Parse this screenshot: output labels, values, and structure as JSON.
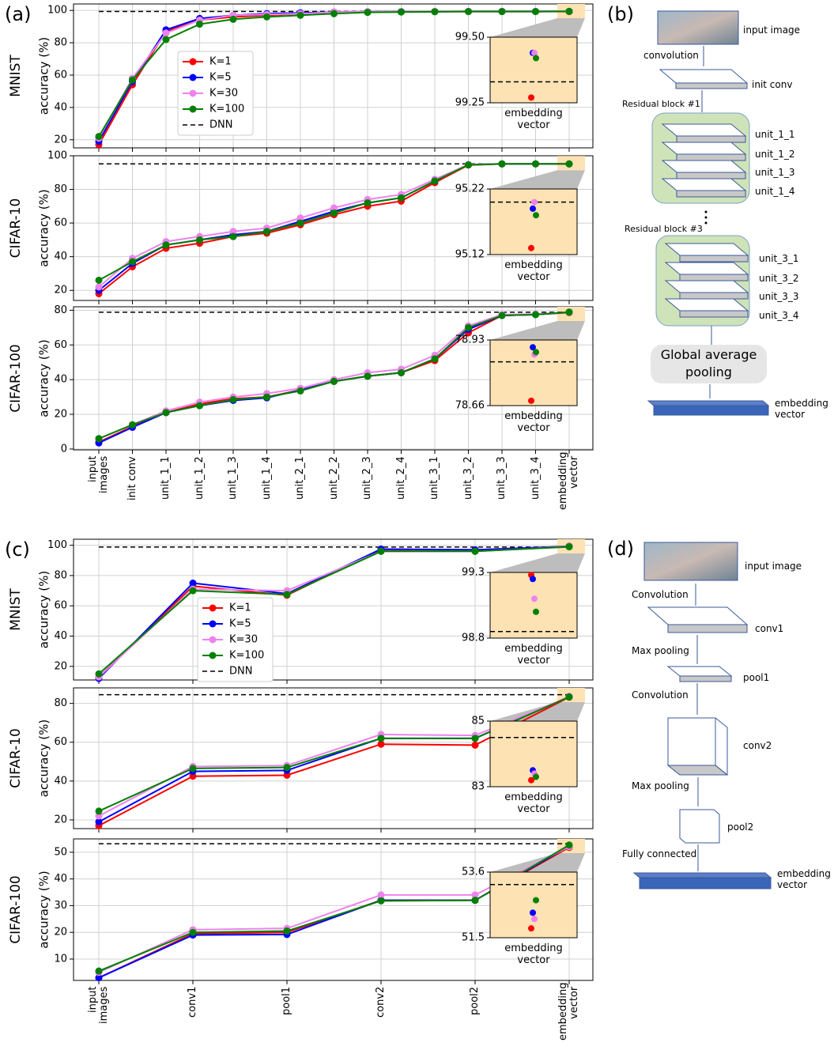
{
  "chart_data": [
    {
      "type": "line",
      "panel": "(a)",
      "title": "MNIST",
      "ylabel": "accuracy (%)",
      "ylim": [
        15,
        104
      ],
      "yticks": [
        20,
        40,
        60,
        80,
        100
      ],
      "grid": true,
      "legend": "upper left",
      "series": [
        {
          "name": "K=1",
          "color": "#ff0000",
          "values": [
            17,
            54,
            87,
            94,
            96,
            97,
            98,
            99,
            99,
            99.2,
            99.3,
            99.3,
            99.3,
            99.3,
            99.27
          ]
        },
        {
          "name": "K=5",
          "color": "#0000ff",
          "values": [
            19,
            56,
            88,
            95,
            97,
            98,
            98.5,
            99,
            99.2,
            99.3,
            99.3,
            99.4,
            99.4,
            99.4,
            99.44
          ]
        },
        {
          "name": "K=30",
          "color": "#ee82ee",
          "values": [
            21,
            58,
            86,
            94,
            97,
            97.5,
            98,
            99,
            99.2,
            99.3,
            99.4,
            99.4,
            99.4,
            99.4,
            99.44
          ]
        },
        {
          "name": "K=100",
          "color": "#008000",
          "values": [
            22,
            57,
            82,
            91.5,
            94.5,
            96,
            97,
            98,
            98.8,
            99,
            99.2,
            99.3,
            99.3,
            99.3,
            99.42
          ]
        }
      ],
      "dnn": {
        "name": "DNN",
        "value": 99.33
      },
      "inset": {
        "ylim": [
          99.25,
          99.5
        ],
        "yticks": [
          99.25,
          {
            "value": 99.5,
            "label": "99.50"
          }
        ],
        "xlabel": "embedding vector"
      }
    },
    {
      "type": "line",
      "title": "CIFAR-10",
      "ylabel": "accuracy (%)",
      "ylim": [
        14,
        100
      ],
      "yticks": [
        20,
        40,
        60,
        80,
        100
      ],
      "grid": true,
      "series": [
        {
          "color": "#ff0000",
          "values": [
            18,
            34,
            45,
            48,
            52,
            54,
            59,
            65,
            70,
            73,
            84,
            94.5,
            95.1,
            95.15,
            95.13
          ]
        },
        {
          "color": "#0000ff",
          "values": [
            20,
            36,
            47,
            50,
            53,
            55,
            61,
            67,
            72,
            75,
            85,
            94.7,
            95.2,
            95.2,
            95.19
          ]
        },
        {
          "color": "#ee82ee",
          "values": [
            22,
            39,
            49,
            52,
            55,
            57,
            63,
            69,
            74,
            77,
            86,
            94.8,
            95.2,
            95.2,
            95.2
          ]
        },
        {
          "color": "#008000",
          "values": [
            26,
            37,
            47,
            50,
            52,
            55,
            60,
            66,
            72,
            75,
            85,
            94.6,
            95.2,
            95.2,
            95.18
          ]
        }
      ],
      "dnn": {
        "value": 95.2
      },
      "inset": {
        "ylim": [
          95.12,
          95.22
        ],
        "yticks": [
          95.12,
          95.22
        ],
        "xlabel": "embedding vector"
      }
    },
    {
      "type": "line",
      "title": "CIFAR-100",
      "ylabel": "accuracy (%)",
      "ylim": [
        -0.5,
        82
      ],
      "yticks": [
        0,
        20,
        40,
        60,
        80
      ],
      "grid": true,
      "categories": [
        "input images",
        "init conv",
        "unit_1_1",
        "unit_1_2",
        "unit_1_3",
        "unit_1_4",
        "unit_2_1",
        "unit_2_2",
        "unit_2_3",
        "unit_2_4",
        "unit_3_1",
        "unit_3_2",
        "unit_3_3",
        "unit_3_4",
        "embedding vector"
      ],
      "series": [
        {
          "color": "#ff0000",
          "values": [
            4,
            13,
            21,
            26,
            29,
            30,
            34,
            39,
            42,
            44,
            51,
            67,
            77,
            77.5,
            78.68
          ]
        },
        {
          "color": "#0000ff",
          "values": [
            3.5,
            12.5,
            21,
            25,
            28,
            29.5,
            34,
            39,
            42,
            44,
            52,
            69,
            77,
            77.5,
            78.9
          ]
        },
        {
          "color": "#ee82ee",
          "values": [
            6,
            14,
            22,
            27,
            30,
            32,
            35,
            40,
            44,
            46,
            54,
            71,
            77.5,
            77.8,
            78.87
          ]
        },
        {
          "color": "#008000",
          "values": [
            6,
            14,
            21,
            25,
            28.5,
            30,
            33.5,
            39,
            42,
            44,
            52,
            70,
            77,
            77.5,
            78.88
          ]
        }
      ],
      "dnn": {
        "value": 78.84
      },
      "inset": {
        "ylim": [
          78.66,
          78.93
        ],
        "yticks": [
          78.66,
          78.93
        ],
        "xlabel": "embedding vector"
      }
    },
    {
      "type": "line",
      "panel": "(c)",
      "title": "MNIST",
      "ylabel": "accuracy (%)",
      "ylim": [
        11,
        104
      ],
      "yticks": [
        20,
        40,
        60,
        80,
        100
      ],
      "grid": true,
      "legend": "center left",
      "series": [
        {
          "name": "K=1",
          "color": "#ff0000",
          "values": [
            13,
            73,
            67,
            97,
            97,
            99.28
          ]
        },
        {
          "name": "K=5",
          "color": "#0000ff",
          "values": [
            12,
            75,
            68,
            97.5,
            97,
            99.25
          ]
        },
        {
          "name": "K=30",
          "color": "#ee82ee",
          "values": [
            13,
            71,
            70,
            96,
            96,
            99.1
          ]
        },
        {
          "name": "K=100",
          "color": "#008000",
          "values": [
            15,
            70,
            67.5,
            96,
            96,
            99.0
          ]
        }
      ],
      "dnn": {
        "name": "DNN",
        "value": 98.85
      },
      "inset": {
        "ylim": [
          98.8,
          99.3
        ],
        "yticks": [
          98.8,
          99.3
        ],
        "xlabel": "embedding vector"
      }
    },
    {
      "type": "line",
      "title": "CIFAR-10",
      "ylabel": "accuracy (%)",
      "ylim": [
        15.5,
        88
      ],
      "yticks": [
        20,
        40,
        60,
        80
      ],
      "grid": true,
      "series": [
        {
          "color": "#ff0000",
          "values": [
            17,
            42.5,
            43,
            59,
            58.5,
            83.2
          ]
        },
        {
          "color": "#0000ff",
          "values": [
            19,
            45,
            45.5,
            62,
            62,
            83.5
          ]
        },
        {
          "color": "#ee82ee",
          "values": [
            22,
            47.5,
            48,
            64,
            63.5,
            83.4
          ]
        },
        {
          "color": "#008000",
          "values": [
            24.5,
            46.5,
            47,
            62,
            62,
            83.3
          ]
        }
      ],
      "dnn": {
        "value": 84.5
      },
      "inset": {
        "ylim": [
          83,
          85
        ],
        "yticks": [
          83,
          85
        ],
        "xlabel": "embedding vector"
      }
    },
    {
      "type": "line",
      "title": "CIFAR-100",
      "ylabel": "accuracy (%)",
      "ylim": [
        2,
        55
      ],
      "yticks": [
        10,
        20,
        30,
        40,
        50
      ],
      "grid": true,
      "categories": [
        "input images",
        "conv1",
        "pool1",
        "conv2",
        "pool2",
        "embedding vector"
      ],
      "series": [
        {
          "color": "#ff0000",
          "values": [
            3,
            19.5,
            20,
            32,
            32,
            51.8
          ]
        },
        {
          "color": "#0000ff",
          "values": [
            3,
            19,
            19.2,
            32,
            32,
            52.3
          ]
        },
        {
          "color": "#ee82ee",
          "values": [
            5,
            21,
            21.5,
            34,
            34,
            52.1
          ]
        },
        {
          "color": "#008000",
          "values": [
            5.5,
            20,
            20.5,
            31.8,
            32,
            52.7
          ]
        }
      ],
      "dnn": {
        "value": 53.2
      },
      "inset": {
        "ylim": [
          51.5,
          53.6
        ],
        "yticks": [
          51.5,
          53.6
        ],
        "xlabel": "embedding vector"
      }
    }
  ],
  "panel_b": {
    "label": "(b)",
    "input_image": "input image",
    "convolution": "convolution",
    "init_conv": "init conv",
    "block1": "Residual block #1",
    "block1_units": [
      "unit_1_1",
      "unit_1_2",
      "unit_1_3",
      "unit_1_4"
    ],
    "block3": "Residual block #3",
    "block3_units": [
      "unit_3_1",
      "unit_3_2",
      "unit_3_3",
      "unit_3_4"
    ],
    "pooling": "Global average pooling",
    "embedding": "embedding vector"
  },
  "panel_d": {
    "label": "(d)",
    "input_image": "input image",
    "steps": [
      "Convolution",
      "Max pooling",
      "Convolution",
      "Max pooling",
      "Fully connected"
    ],
    "layers": [
      "conv1",
      "pool1",
      "conv2",
      "pool2"
    ],
    "embedding": "embedding vector"
  }
}
